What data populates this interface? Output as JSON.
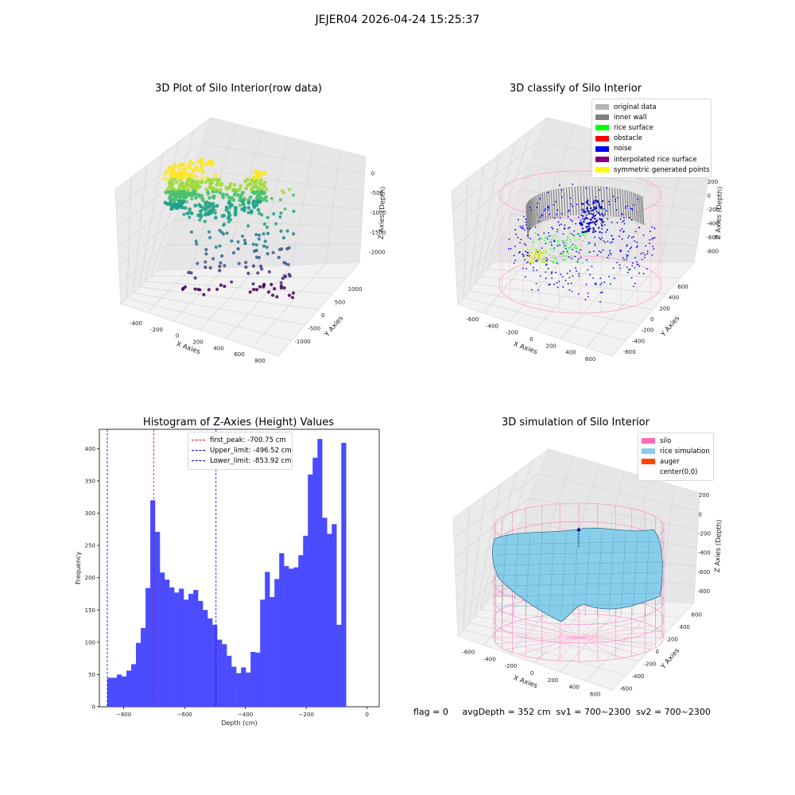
{
  "figure": {
    "suptitle": "JEJER04 2026-04-24 15:25:37",
    "footer": "flag = 0     avgDepth = 352 cm  sv1 = 700~2300  sv2 = 700~2300"
  },
  "chart_data": [
    {
      "type": "scatter",
      "title": "3D Plot of Silo Interior(row data)",
      "xlabel": "X Axies",
      "ylabel": "Y Axies",
      "zlabel": "Z Axies (Depth)",
      "xticks": [
        "-400",
        "-200",
        "0",
        "200",
        "400",
        "600",
        "800"
      ],
      "yticks": [
        "-1000",
        "-500",
        "0",
        "500",
        "1000"
      ],
      "zticks": [
        "0",
        "-500",
        "-1000",
        "-1500",
        "-2000"
      ],
      "xlim": [
        -500,
        900
      ],
      "ylim": [
        -1200,
        1200
      ],
      "zlim": [
        -2100,
        100
      ],
      "colormap": "viridis"
    },
    {
      "type": "scatter",
      "title": "3D classify of Silo Interior",
      "xlabel": "X Axies",
      "ylabel": "Y Axies",
      "zlabel": "Z Axies (Depth)",
      "xticks": [
        "-600",
        "-400",
        "-200",
        "0",
        "200",
        "400",
        "600"
      ],
      "yticks": [
        "-600",
        "-400",
        "-200",
        "0",
        "200",
        "400",
        "600"
      ],
      "zticks": [
        "200",
        "0",
        "-200",
        "-400",
        "-600",
        "-800"
      ],
      "legend": [
        {
          "label": "original data",
          "color": "#b3b3b3"
        },
        {
          "label": "inner wall",
          "color": "#808080"
        },
        {
          "label": "rice surface",
          "color": "#00ff00"
        },
        {
          "label": "obstacle",
          "color": "#ff0000"
        },
        {
          "label": "noise",
          "color": "#0000ff"
        },
        {
          "label": "interpolated rice surface",
          "color": "#800080"
        },
        {
          "label": "symmetric generated points",
          "color": "#ffff00"
        }
      ]
    },
    {
      "type": "bar",
      "title": "Histogram of Z-Axies (Height) Values",
      "xlabel": "Depth (cm)",
      "ylabel": "Frequency",
      "xlim": [
        -880,
        40
      ],
      "ylim": [
        0,
        430
      ],
      "xticks": [
        -800,
        -600,
        -400,
        -200,
        0
      ],
      "yticks": [
        0,
        50,
        100,
        150,
        200,
        250,
        300,
        350,
        400
      ],
      "bin_start": -853.92,
      "bin_width": 15.7,
      "values": [
        45,
        45,
        50,
        47,
        56,
        66,
        99,
        122,
        184,
        320,
        271,
        208,
        197,
        185,
        177,
        183,
        166,
        175,
        181,
        164,
        150,
        137,
        127,
        104,
        97,
        79,
        62,
        52,
        61,
        53,
        85,
        84,
        166,
        209,
        170,
        198,
        238,
        218,
        214,
        216,
        235,
        265,
        360,
        386,
        415,
        293,
        268,
        283,
        127,
        409
      ],
      "bar_color": "#4b4bff",
      "vlines": [
        {
          "label": "first_peak: -700.75 cm",
          "x": -700.75,
          "color": "#ff0000"
        },
        {
          "label": "Upper_limit: -496.52 cm",
          "x": -496.52,
          "color": "#0000ff"
        },
        {
          "label": "Lower_limit: -853.92 cm",
          "x": -853.92,
          "color": "#0000ff"
        }
      ]
    },
    {
      "type": "area",
      "title": "3D simulation of Silo Interior",
      "xlabel": "X Axies",
      "ylabel": "Y Axies",
      "zlabel": "Z Axies (Depth)",
      "xticks": [
        "-600",
        "-400",
        "-200",
        "0",
        "200",
        "400",
        "600"
      ],
      "yticks": [
        "-600",
        "-400",
        "-200",
        "0",
        "200",
        "400",
        "600"
      ],
      "zticks": [
        "200",
        "0",
        "-200",
        "-400",
        "-600",
        "-800"
      ],
      "legend": [
        {
          "label": "silo",
          "color": "#ff69b4"
        },
        {
          "label": "rice simulation",
          "color": "#87ceeb"
        },
        {
          "label": "auger",
          "color": "#ff4500"
        },
        {
          "label": "center(0,0)",
          "color": "#ffffff"
        }
      ]
    }
  ]
}
